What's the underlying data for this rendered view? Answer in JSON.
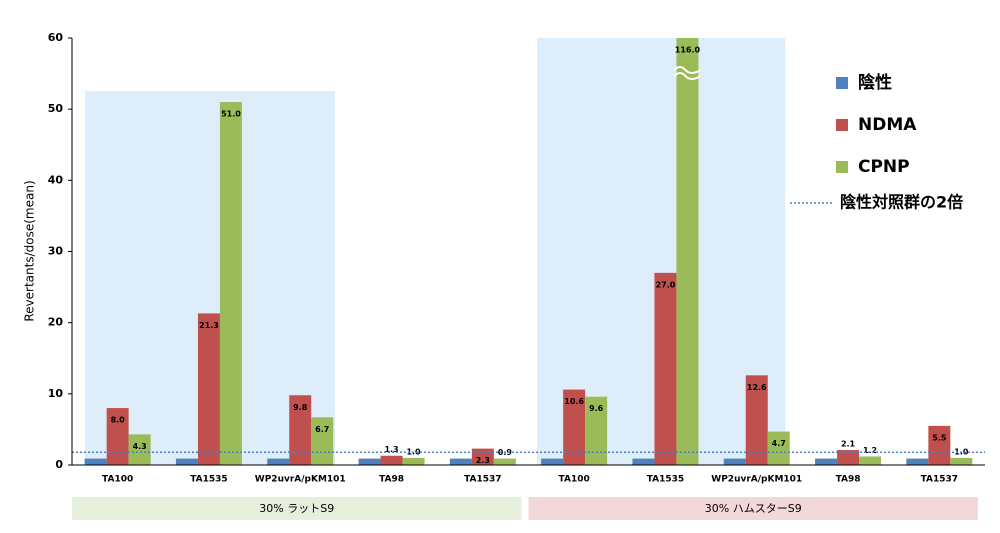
{
  "chart_data": {
    "type": "bar",
    "y_label": "Revertants/dose(mean)",
    "categories": [
      "TA100",
      "TA1535",
      "WP2uvrA/pKM101",
      "TA98",
      "TA1537",
      "TA100",
      "TA1535",
      "WP2uvrA/pKM101",
      "TA98",
      "TA1537"
    ],
    "groups": [
      {
        "label": "30% ラットS9",
        "color": "#e6efdc"
      },
      {
        "label": "30% ハムスターS9",
        "color": "#f3d8d9"
      }
    ],
    "series": [
      {
        "name": "陰性",
        "color": "#4f81bd",
        "values": [
          0.9,
          0.9,
          0.9,
          0.9,
          0.9,
          0.9,
          0.9,
          0.9,
          0.9,
          0.9
        ]
      },
      {
        "name": "NDMA",
        "color": "#c0504d",
        "values": [
          8.0,
          21.3,
          9.8,
          1.3,
          2.3,
          10.6,
          27.0,
          12.6,
          2.1,
          5.5
        ],
        "value_labels": [
          "8.0",
          "21.3",
          "9.8",
          "1.3",
          "2.3",
          "10.6",
          "27.0",
          "12.6",
          "2.1",
          "5.5"
        ]
      },
      {
        "name": "CPNP",
        "color": "#9bbb59",
        "values": [
          4.3,
          51.0,
          6.7,
          1.0,
          0.9,
          9.6,
          116.0,
          4.7,
          1.2,
          1.0
        ],
        "value_labels": [
          "4.3",
          "51.0",
          "6.7",
          "1.0",
          "0.9",
          "9.6",
          "116.0",
          "4.7",
          "1.2",
          "1.0"
        ]
      }
    ],
    "reference_line": {
      "name": "陰性対照群の2倍",
      "value": 1.8,
      "color": "#4a7fc1"
    },
    "ylim": [
      0,
      60
    ],
    "yticks": [
      0,
      10,
      20,
      30,
      40,
      50,
      60
    ],
    "grid": false
  }
}
